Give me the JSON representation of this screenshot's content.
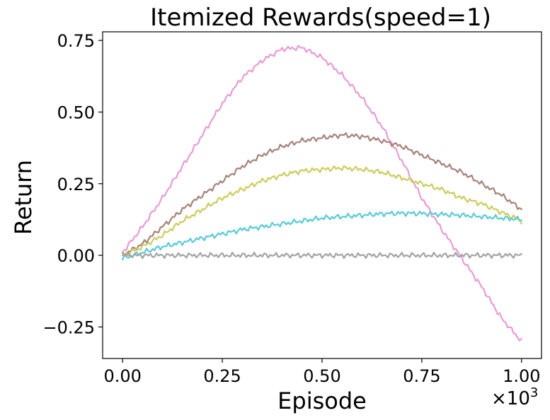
{
  "chart_data": {
    "type": "line",
    "title": "Itemized Rewards(speed=1)",
    "xlabel": "Episode",
    "ylabel": "Return",
    "x_multiplier_label": "×10",
    "x_multiplier_exp": "3",
    "xlim": [
      -0.05,
      1.05
    ],
    "ylim": [
      -0.36,
      0.78
    ],
    "xticks": [
      0.0,
      0.25,
      0.5,
      0.75,
      1.0
    ],
    "xtick_labels": [
      "0.00",
      "0.25",
      "0.50",
      "0.75",
      "1.00"
    ],
    "yticks": [
      -0.25,
      0.0,
      0.25,
      0.5,
      0.75
    ],
    "ytick_labels": [
      "−0.25",
      "0.00",
      "0.25",
      "0.50",
      "0.75"
    ],
    "grid": false,
    "legend": false,
    "series": [
      {
        "color": "#e99bd5",
        "x": [
          0,
          0.05,
          0.1,
          0.15,
          0.2,
          0.25,
          0.3,
          0.35,
          0.4,
          0.45,
          0.5,
          0.55,
          0.6,
          0.65,
          0.7,
          0.75,
          0.8,
          0.85,
          0.9,
          0.95,
          1.0
        ],
        "y": [
          0.01,
          0.1,
          0.2,
          0.31,
          0.42,
          0.53,
          0.62,
          0.68,
          0.72,
          0.725,
          0.69,
          0.63,
          0.55,
          0.45,
          0.33,
          0.2,
          0.09,
          -0.01,
          -0.11,
          -0.22,
          -0.3
        ]
      },
      {
        "color": "#a6827a",
        "x": [
          0,
          0.05,
          0.1,
          0.15,
          0.2,
          0.25,
          0.3,
          0.35,
          0.4,
          0.45,
          0.5,
          0.55,
          0.6,
          0.65,
          0.7,
          0.75,
          0.8,
          0.85,
          0.9,
          0.95,
          1.0
        ],
        "y": [
          0.0,
          0.04,
          0.1,
          0.16,
          0.21,
          0.26,
          0.31,
          0.35,
          0.38,
          0.4,
          0.41,
          0.42,
          0.415,
          0.4,
          0.38,
          0.35,
          0.32,
          0.29,
          0.25,
          0.21,
          0.16
        ]
      },
      {
        "color": "#cdcc5d",
        "x": [
          0,
          0.05,
          0.1,
          0.15,
          0.2,
          0.25,
          0.3,
          0.35,
          0.4,
          0.45,
          0.5,
          0.55,
          0.6,
          0.65,
          0.7,
          0.75,
          0.8,
          0.85,
          0.9,
          0.95,
          1.0
        ],
        "y": [
          0.0,
          0.03,
          0.07,
          0.12,
          0.16,
          0.2,
          0.23,
          0.26,
          0.28,
          0.295,
          0.3,
          0.305,
          0.3,
          0.29,
          0.27,
          0.25,
          0.23,
          0.2,
          0.18,
          0.15,
          0.12
        ]
      },
      {
        "color": "#57cbd8",
        "x": [
          0,
          0.05,
          0.1,
          0.15,
          0.2,
          0.25,
          0.3,
          0.35,
          0.4,
          0.45,
          0.5,
          0.55,
          0.6,
          0.65,
          0.7,
          0.75,
          0.8,
          0.85,
          0.9,
          0.95,
          1.0
        ],
        "y": [
          -0.01,
          0.01,
          0.03,
          0.045,
          0.06,
          0.075,
          0.09,
          0.1,
          0.11,
          0.12,
          0.13,
          0.135,
          0.14,
          0.145,
          0.147,
          0.146,
          0.143,
          0.14,
          0.135,
          0.13,
          0.125
        ]
      },
      {
        "color": "#a3a3a3",
        "x": [
          0,
          0.05,
          0.1,
          0.15,
          0.2,
          0.25,
          0.3,
          0.35,
          0.4,
          0.45,
          0.5,
          0.55,
          0.6,
          0.65,
          0.7,
          0.75,
          0.8,
          0.85,
          0.9,
          0.95,
          1.0
        ],
        "y": [
          0.0,
          0.0,
          0.0,
          0.0,
          0.0,
          0.0,
          0.0,
          0.0,
          0.0,
          0.0,
          0.0,
          0.0,
          0.0,
          0.0,
          0.0,
          0.0,
          0.0,
          0.0,
          0.0,
          0.0,
          0.0
        ]
      }
    ]
  }
}
